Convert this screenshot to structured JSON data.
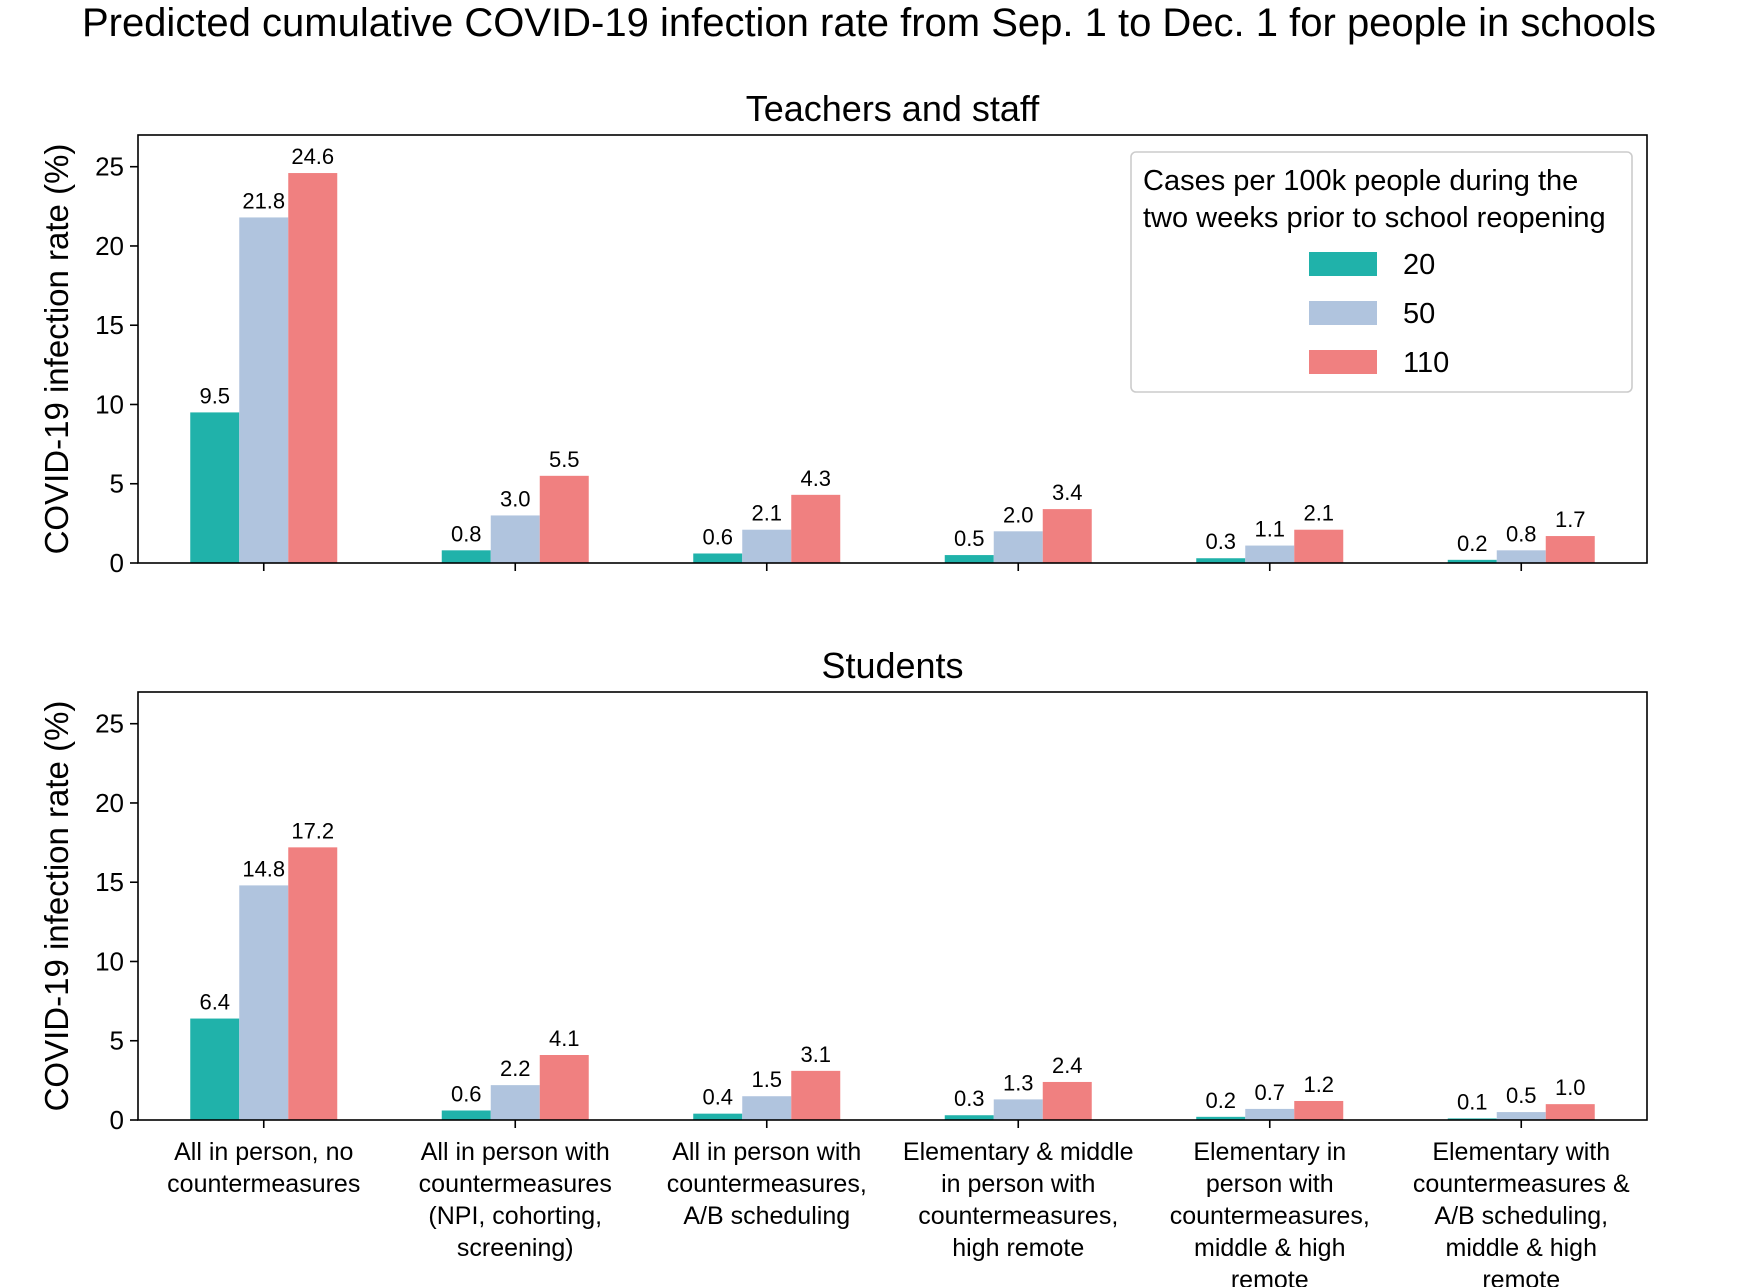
{
  "chart_data": {
    "type": "bar",
    "title": "Predicted cumulative COVID-19 infection rate from Sep. 1 to Dec. 1 for people in schools",
    "categories": [
      [
        "All in person, no",
        "countermeasures"
      ],
      [
        "All in person with",
        "countermeasures",
        "(NPI, cohorting,",
        "screening)"
      ],
      [
        "All in person with",
        "countermeasures,",
        "A/B scheduling"
      ],
      [
        "Elementary & middle",
        "in person with",
        "countermeasures,",
        "high remote"
      ],
      [
        "Elementary in",
        "person with",
        "countermeasures,",
        "middle & high",
        "remote"
      ],
      [
        "Elementary with",
        "countermeasures &",
        "A/B scheduling,",
        "middle & high",
        "remote"
      ]
    ],
    "legend": {
      "title": [
        "Cases per 100k people during the",
        "two weeks prior to school reopening"
      ],
      "position": "upper right"
    },
    "series_colors": [
      "#20b2aa",
      "#b0c4de",
      "#f08080"
    ],
    "ylim": [
      0,
      27
    ],
    "yticks": [
      0,
      5,
      10,
      15,
      20,
      25
    ],
    "panels": [
      {
        "title": "Teachers and staff",
        "ylabel": "COVID-19 infection rate (%)",
        "series": [
          {
            "name": "20",
            "values": [
              9.5,
              0.8,
              0.6,
              0.5,
              0.3,
              0.2
            ],
            "labels": [
              "9.5",
              "0.8",
              "0.6",
              "0.5",
              "0.3",
              "0.2"
            ]
          },
          {
            "name": "50",
            "values": [
              21.8,
              3.0,
              2.1,
              2.0,
              1.1,
              0.8
            ],
            "labels": [
              "21.8",
              "3.0",
              "2.1",
              "2.0",
              "1.1",
              "0.8"
            ]
          },
          {
            "name": "110",
            "values": [
              24.6,
              5.5,
              4.3,
              3.4,
              2.1,
              1.7
            ],
            "labels": [
              "24.6",
              "5.5",
              "4.3",
              "3.4",
              "2.1",
              "1.7"
            ]
          }
        ]
      },
      {
        "title": "Students",
        "ylabel": "COVID-19 infection rate (%)",
        "series": [
          {
            "name": "20",
            "values": [
              6.4,
              0.6,
              0.4,
              0.3,
              0.2,
              0.1
            ],
            "labels": [
              "6.4",
              "0.6",
              "0.4",
              "0.3",
              "0.2",
              "0.1"
            ]
          },
          {
            "name": "50",
            "values": [
              14.8,
              2.2,
              1.5,
              1.3,
              0.7,
              0.5
            ],
            "labels": [
              "14.8",
              "2.2",
              "1.5",
              "1.3",
              "0.7",
              "0.5"
            ]
          },
          {
            "name": "110",
            "values": [
              17.2,
              4.1,
              3.1,
              2.4,
              1.2,
              1.0
            ],
            "labels": [
              "17.2",
              "4.1",
              "3.1",
              "2.4",
              "1.2",
              "1.0"
            ]
          }
        ]
      }
    ]
  }
}
